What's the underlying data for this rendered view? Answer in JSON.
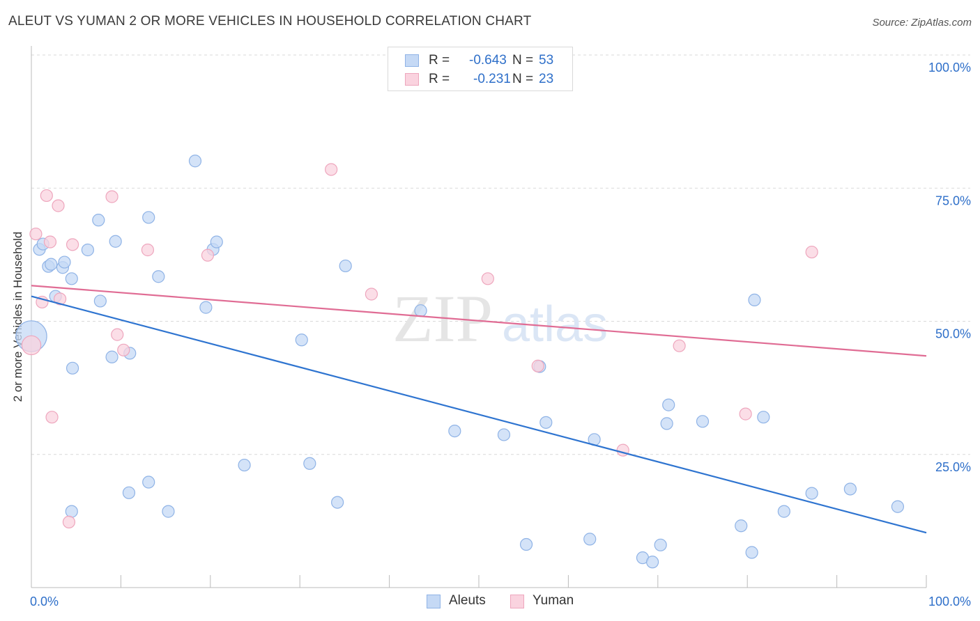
{
  "title": "ALEUT VS YUMAN 2 OR MORE VEHICLES IN HOUSEHOLD CORRELATION CHART",
  "source": "Source: ZipAtlas.com",
  "watermark": {
    "zip": "ZIP",
    "atlas": "atlas"
  },
  "colors": {
    "aleut": "#2e74d0",
    "aleut_fill": "#c5d9f5",
    "aleut_edge": "#8fb3e6",
    "yuman": "#e06c94",
    "yuman_fill": "#fad3df",
    "yuman_edge": "#eea6bd",
    "accent_text": "#2e6fc9",
    "grid": "#d9d9d9"
  },
  "legend_top": {
    "rows": [
      {
        "series": "aleut",
        "r_label": "R =",
        "r_value": "-0.643",
        "n_label": "N =",
        "n_value": "53"
      },
      {
        "series": "yuman",
        "r_label": "R =",
        "r_value": "-0.231",
        "n_label": "N =",
        "n_value": "23"
      }
    ]
  },
  "legend_bottom": [
    {
      "series": "aleut",
      "label": "Aleuts"
    },
    {
      "series": "yuman",
      "label": "Yuman"
    }
  ],
  "chart_data": {
    "type": "scatter",
    "title": "ALEUT VS YUMAN 2 OR MORE VEHICLES IN HOUSEHOLD CORRELATION CHART",
    "xlabel": "",
    "ylabel": "2 or more Vehicles in Household",
    "xlim": [
      0,
      100
    ],
    "ylim": [
      0,
      100
    ],
    "x_tick_labels": {
      "left": "0.0%",
      "right": "100.0%"
    },
    "y_ticks": [
      {
        "value": 25,
        "label": "25.0%"
      },
      {
        "value": 50,
        "label": "50.0%"
      },
      {
        "value": 75,
        "label": "75.0%"
      },
      {
        "value": 100,
        "label": "100.0%"
      }
    ],
    "grid": "horizontal dashed",
    "series": [
      {
        "name": "Aleuts",
        "key": "aleut",
        "points": [
          [
            0.0,
            47.2,
            2.6
          ],
          [
            0.9,
            63.5,
            1
          ],
          [
            1.3,
            64.5,
            1
          ],
          [
            1.9,
            60.3,
            1
          ],
          [
            2.2,
            60.7,
            1
          ],
          [
            2.7,
            54.7,
            1
          ],
          [
            3.5,
            60.1,
            1
          ],
          [
            3.7,
            61.1,
            1
          ],
          [
            4.5,
            58.0,
            1
          ],
          [
            4.6,
            41.2,
            1
          ],
          [
            4.5,
            14.3,
            1
          ],
          [
            6.3,
            63.4,
            1
          ],
          [
            7.5,
            69.0,
            1
          ],
          [
            7.7,
            53.8,
            1
          ],
          [
            9.0,
            43.3,
            1
          ],
          [
            9.4,
            65.0,
            1
          ],
          [
            10.9,
            17.8,
            1
          ],
          [
            11.0,
            44.0,
            1
          ],
          [
            13.1,
            69.5,
            1
          ],
          [
            13.1,
            19.8,
            1
          ],
          [
            14.2,
            58.4,
            1
          ],
          [
            15.3,
            14.3,
            1
          ],
          [
            18.3,
            80.1,
            1
          ],
          [
            19.5,
            52.6,
            1
          ],
          [
            20.3,
            63.5,
            1
          ],
          [
            20.7,
            64.9,
            1
          ],
          [
            23.8,
            23.0,
            1
          ],
          [
            30.2,
            46.5,
            1
          ],
          [
            31.1,
            23.3,
            1
          ],
          [
            34.2,
            16.0,
            1
          ],
          [
            35.1,
            60.4,
            1
          ],
          [
            43.5,
            52.0,
            1
          ],
          [
            47.3,
            29.4,
            1
          ],
          [
            52.8,
            28.7,
            1
          ],
          [
            55.3,
            8.1,
            1
          ],
          [
            56.8,
            41.5,
            1
          ],
          [
            57.5,
            31.0,
            1
          ],
          [
            62.4,
            9.1,
            1
          ],
          [
            62.9,
            27.8,
            1
          ],
          [
            68.3,
            5.6,
            1
          ],
          [
            69.4,
            4.8,
            1
          ],
          [
            70.3,
            8.0,
            1
          ],
          [
            71.0,
            30.8,
            1
          ],
          [
            71.2,
            34.3,
            1
          ],
          [
            75.0,
            31.2,
            1
          ],
          [
            79.3,
            11.6,
            1
          ],
          [
            80.5,
            6.6,
            1
          ],
          [
            80.8,
            54.0,
            1
          ],
          [
            81.8,
            32.0,
            1
          ],
          [
            84.1,
            14.3,
            1
          ],
          [
            87.2,
            17.7,
            1
          ],
          [
            91.5,
            18.5,
            1
          ],
          [
            96.8,
            15.2,
            1
          ]
        ]
      },
      {
        "name": "Yuman",
        "key": "yuman",
        "points": [
          [
            0.0,
            45.5,
            1.6
          ],
          [
            0.5,
            66.4,
            1
          ],
          [
            1.2,
            53.6,
            1
          ],
          [
            1.7,
            73.6,
            1
          ],
          [
            2.1,
            64.9,
            1
          ],
          [
            2.3,
            32.0,
            1
          ],
          [
            3.0,
            71.7,
            1
          ],
          [
            3.2,
            54.2,
            1
          ],
          [
            4.2,
            12.3,
            1
          ],
          [
            4.6,
            64.4,
            1
          ],
          [
            9.0,
            73.4,
            1
          ],
          [
            9.6,
            47.5,
            1
          ],
          [
            10.3,
            44.6,
            1
          ],
          [
            13.0,
            63.4,
            1
          ],
          [
            19.7,
            62.4,
            1
          ],
          [
            33.5,
            78.5,
            1
          ],
          [
            38.0,
            55.1,
            1
          ],
          [
            51.0,
            58.0,
            1
          ],
          [
            56.6,
            41.6,
            1
          ],
          [
            66.1,
            25.8,
            1
          ],
          [
            72.4,
            45.4,
            1
          ],
          [
            79.8,
            32.6,
            1
          ],
          [
            87.2,
            63.0,
            1
          ]
        ]
      }
    ],
    "trendlines": [
      {
        "series": "aleut",
        "x": [
          0,
          100
        ],
        "y": [
          54.7,
          10.3
        ]
      },
      {
        "series": "yuman",
        "x": [
          0,
          100
        ],
        "y": [
          56.7,
          43.5
        ]
      }
    ]
  }
}
